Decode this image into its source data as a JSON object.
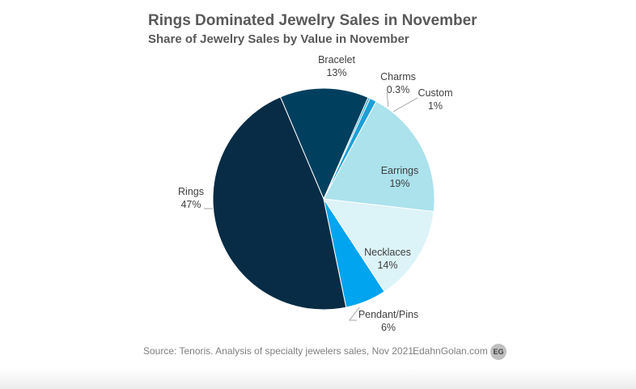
{
  "chart_data": {
    "type": "pie",
    "title": "Rings Dominated Jewelry Sales in November",
    "subtitle": "Share of Jewelry Sales by Value in November",
    "slices": [
      {
        "name": "Bracelet",
        "value": 13,
        "label": "13%",
        "color": "#003f5e"
      },
      {
        "name": "Charms",
        "value": 0.3,
        "label": "0.3%",
        "color": "#2fa7c4"
      },
      {
        "name": "Custom",
        "value": 1,
        "label": "1%",
        "color": "#1c9fd6"
      },
      {
        "name": "Earrings",
        "value": 19,
        "label": "19%",
        "color": "#abe2ec"
      },
      {
        "name": "Necklaces",
        "value": 14,
        "label": "14%",
        "color": "#dcf3f7"
      },
      {
        "name": "Pendant/Pins",
        "value": 6,
        "label": "6%",
        "color": "#00a4ef"
      },
      {
        "name": "Rings",
        "value": 47,
        "label": "47%",
        "color": "#082c45"
      }
    ],
    "start_angle_deg": -23
  },
  "footer": {
    "source": "Source: Tenoris.  Analysis of specialty jewelers sales, Nov 2021.",
    "site": "EdahnGolan.com",
    "badge": "EG"
  }
}
